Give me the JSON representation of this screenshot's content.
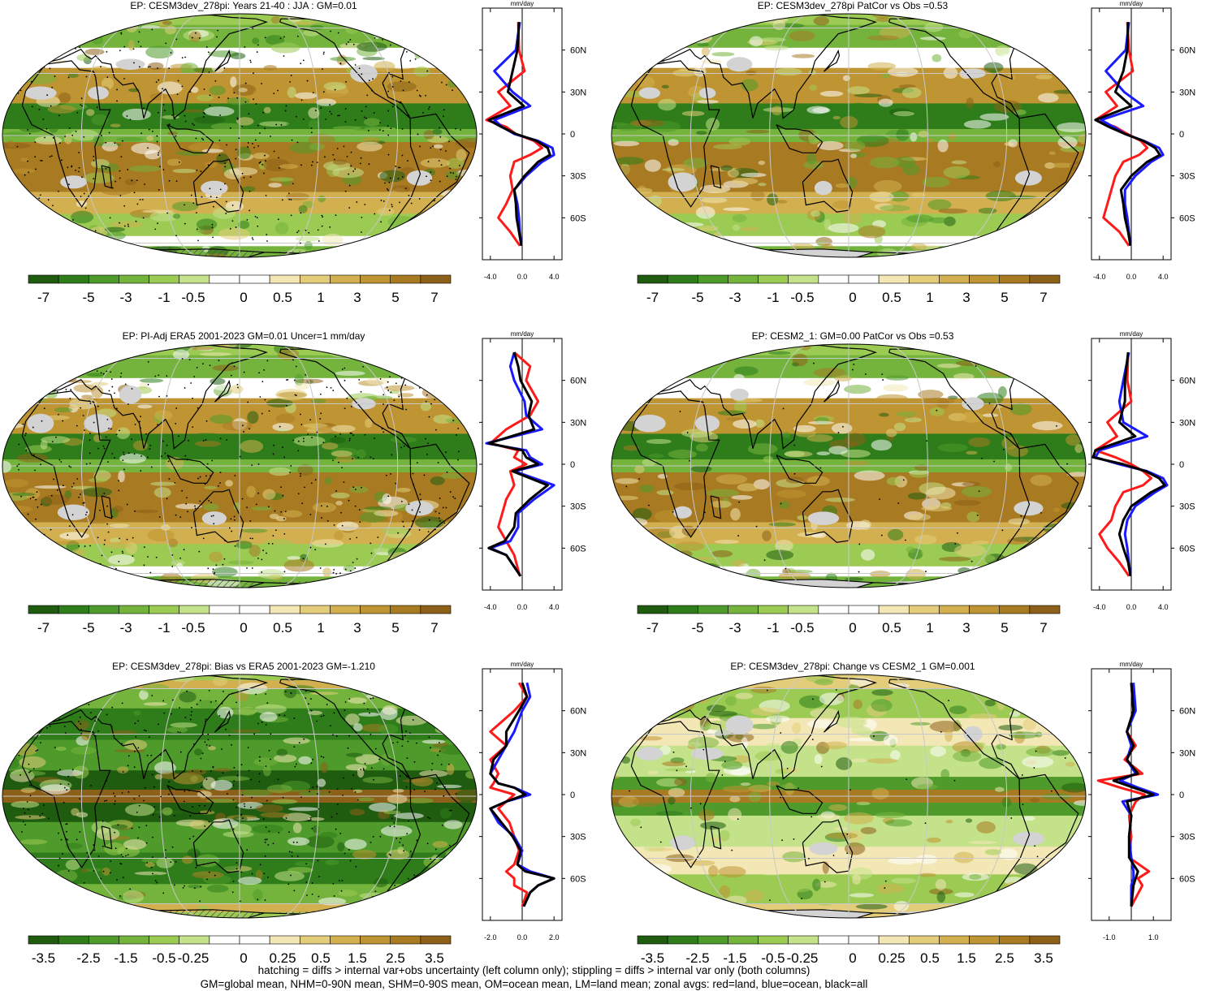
{
  "panels": [
    {
      "title": "EP: CESM3dev_278pi: Years 21-40 : JJA : GM=0.01",
      "zonal_unit": "mm/day",
      "lat_labels": [
        "60N",
        "30N",
        "0",
        "30S",
        "60S"
      ],
      "x_ticks": [
        "-4.0",
        "0.0",
        "4.0"
      ],
      "colorbar": [
        "-7",
        "-5",
        "-3",
        "-1",
        "-0.5",
        "0",
        "0.5",
        "1",
        "3",
        "5",
        "7"
      ],
      "hatching": true,
      "stippling": "heavy",
      "field": "mean"
    },
    {
      "title": "EP: CESM3dev_278pi PatCor vs Obs =0.53",
      "zonal_unit": "mm/day",
      "lat_labels": [
        "60N",
        "30N",
        "0",
        "30S",
        "60S"
      ],
      "x_ticks": [
        "-4.0",
        "0.0",
        "4.0"
      ],
      "colorbar": [
        "-7",
        "-5",
        "-3",
        "-1",
        "-0.5",
        "0",
        "0.5",
        "1",
        "3",
        "5",
        "7"
      ],
      "hatching": false,
      "stippling": "none",
      "field": "mean"
    },
    {
      "title": "EP: PI-Adj ERA5 2001-2023 GM=0.01 Uncer=1 mm/day",
      "zonal_unit": "mm/day",
      "lat_labels": [
        "60N",
        "30N",
        "0",
        "30S",
        "60S"
      ],
      "x_ticks": [
        "-4.0",
        "0.0",
        "4.0"
      ],
      "colorbar": [
        "-7",
        "-5",
        "-3",
        "-1",
        "-0.5",
        "0",
        "0.5",
        "1",
        "3",
        "5",
        "7"
      ],
      "hatching": true,
      "stippling": "heavy",
      "field": "obs"
    },
    {
      "title": "EP: CESM2_1: GM=0.00 PatCor vs Obs =0.53",
      "zonal_unit": "mm/day",
      "lat_labels": [
        "60N",
        "30N",
        "0",
        "30S",
        "60S"
      ],
      "x_ticks": [
        "-4.0",
        "0.0",
        "4.0"
      ],
      "colorbar": [
        "-7",
        "-5",
        "-3",
        "-1",
        "-0.5",
        "0",
        "0.5",
        "1",
        "3",
        "5",
        "7"
      ],
      "hatching": false,
      "stippling": "light",
      "field": "mean"
    },
    {
      "title": "EP: CESM3dev_278pi: Bias vs ERA5 2001-2023 GM=-1.210",
      "zonal_unit": "mm/day",
      "lat_labels": [
        "60N",
        "30N",
        "0",
        "30S",
        "60S"
      ],
      "x_ticks": [
        "-2.0",
        "0.0",
        "2.0"
      ],
      "colorbar": [
        "-3.5",
        "-2.5",
        "-1.5",
        "-0.5",
        "-0.25",
        "0",
        "0.25",
        "0.5",
        "1.5",
        "2.5",
        "3.5"
      ],
      "hatching": true,
      "stippling": "heavy",
      "field": "bias"
    },
    {
      "title": "EP: CESM3dev_278pi: Change vs CESM2_1 GM=0.001",
      "zonal_unit": "mm/day",
      "lat_labels": [
        "60N",
        "30N",
        "0",
        "30S",
        "60S"
      ],
      "x_ticks": [
        "-1.0",
        "1.0"
      ],
      "colorbar": [
        "-3.5",
        "-2.5",
        "-1.5",
        "-0.5",
        "-0.25",
        "0",
        "0.25",
        "0.5",
        "1.5",
        "2.5",
        "3.5"
      ],
      "hatching": false,
      "stippling": "light",
      "field": "change"
    }
  ],
  "palette": [
    "#1f5c10",
    "#2e7d1a",
    "#4e9a2a",
    "#74b33c",
    "#9ccb54",
    "#c4e28a",
    "#ffffff",
    "#ffffff",
    "#f3e8b5",
    "#e3cd7a",
    "#d2b04f",
    "#bf9432",
    "#a87a22",
    "#8c6018"
  ],
  "footer": {
    "line1": "hatching = diffs > internal var+obs uncertainty (left column only); stippling = diffs > internal var only (both columns)",
    "line2": "GM=global mean, NHM=0-90N mean, SHM=0-90S mean, OM=ocean mean, LM=land mean; zonal avgs: red=land, blue=ocean, black=all"
  },
  "chart_data": [
    {
      "type": "heatmap",
      "title": "EP: CESM3dev_278pi: Years 21-40 : JJA : GM=0.01",
      "colorbar_levels": [
        -7,
        -5,
        -3,
        -1,
        -0.5,
        0,
        0.5,
        1,
        3,
        5,
        7
      ],
      "zonal_mean": {
        "type": "line",
        "xlabel": "mm/day",
        "xlim": [
          -5,
          5
        ],
        "ylim": [
          -90,
          90
        ],
        "lat": [
          80,
          60,
          45,
          30,
          20,
          10,
          5,
          0,
          -5,
          -10,
          -15,
          -20,
          -30,
          -40,
          -50,
          -60,
          -70,
          -80
        ],
        "series": [
          {
            "name": "land",
            "values": [
              -0.5,
              -0.4,
              0.3,
              -3.0,
              -1.5,
              -4.5,
              -2.0,
              -0.8,
              1.5,
              2.5,
              1.0,
              -1.0,
              -1.5,
              -1.2,
              -2.0,
              -3.0,
              -1.5,
              -0.3
            ]
          },
          {
            "name": "ocean",
            "values": [
              -0.3,
              -0.8,
              -3.5,
              -1.2,
              1.0,
              -3.5,
              -2.5,
              -1.0,
              2.0,
              3.8,
              4.0,
              2.5,
              0.5,
              -1.0,
              -0.6,
              -0.4,
              -0.3,
              -0.1
            ]
          },
          {
            "name": "all",
            "values": [
              -0.4,
              -0.6,
              -1.2,
              -1.8,
              0.2,
              -4.2,
              -2.6,
              -0.8,
              1.8,
              3.2,
              3.5,
              2.0,
              0.3,
              -1.0,
              -0.8,
              -0.7,
              -0.4,
              -0.1
            ]
          }
        ]
      }
    },
    {
      "type": "heatmap",
      "title": "EP: CESM3dev_278pi PatCor vs Obs =0.53",
      "colorbar_levels": [
        -7,
        -5,
        -3,
        -1,
        -0.5,
        0,
        0.5,
        1,
        3,
        5,
        7
      ],
      "zonal_mean": {
        "type": "line",
        "xlabel": "mm/day",
        "xlim": [
          -5,
          5
        ],
        "ylim": [
          -90,
          90
        ],
        "lat": [
          80,
          60,
          45,
          30,
          20,
          10,
          5,
          0,
          -5,
          -10,
          -15,
          -20,
          -30,
          -40,
          -50,
          -60,
          -70,
          -80
        ],
        "series": [
          {
            "name": "land",
            "values": [
              -0.5,
              -0.3,
              0.2,
              -3.2,
              -1.8,
              -4.5,
              -2.0,
              -0.5,
              1.2,
              2.0,
              1.0,
              -1.0,
              -2.0,
              -2.5,
              -3.0,
              -3.5,
              -1.5,
              -0.3
            ]
          },
          {
            "name": "ocean",
            "values": [
              -0.3,
              -0.7,
              -3.2,
              -0.9,
              1.5,
              -3.8,
              -2.2,
              -0.8,
              1.6,
              3.5,
              4.0,
              2.5,
              0.5,
              -0.8,
              -0.8,
              -0.5,
              -0.3,
              -0.1
            ]
          },
          {
            "name": "all",
            "values": [
              -0.4,
              -0.5,
              -1.0,
              -2.0,
              0.0,
              -4.5,
              -2.8,
              -0.8,
              1.5,
              3.0,
              3.6,
              2.0,
              0.0,
              -1.3,
              -1.0,
              -0.8,
              -0.4,
              -0.1
            ]
          }
        ]
      }
    },
    {
      "type": "heatmap",
      "title": "EP: PI-Adj ERA5 2001-2023 GM=0.01 Uncer=1 mm/day",
      "colorbar_levels": [
        -7,
        -5,
        -3,
        -1,
        -0.5,
        0,
        0.5,
        1,
        3,
        5,
        7
      ],
      "zonal_mean": {
        "type": "line",
        "xlabel": "mm/day",
        "xlim": [
          -5,
          5
        ],
        "ylim": [
          -90,
          90
        ],
        "lat": [
          80,
          70,
          60,
          45,
          35,
          25,
          15,
          10,
          5,
          0,
          -5,
          -15,
          -25,
          -35,
          -45,
          -55,
          -60,
          -65,
          -80
        ],
        "series": [
          {
            "name": "land",
            "values": [
              -1.0,
              1.0,
              0.5,
              2.0,
              1.0,
              -2.0,
              -4.0,
              -0.5,
              -1.0,
              0.5,
              -1.5,
              -1.0,
              -2.0,
              -2.5,
              -3.0,
              -2.0,
              -1.5,
              -1.0,
              -0.3
            ]
          },
          {
            "name": "ocean",
            "values": [
              -1.0,
              -1.5,
              -1.0,
              0.3,
              0.5,
              2.5,
              -4.5,
              0.5,
              1.0,
              2.5,
              -1.0,
              4.0,
              1.5,
              -0.5,
              -0.5,
              -1.5,
              -4.0,
              -2.0,
              -0.2
            ]
          },
          {
            "name": "all",
            "values": [
              -1.0,
              -0.5,
              -0.2,
              1.2,
              0.8,
              1.5,
              -4.2,
              0.0,
              0.5,
              2.0,
              -1.2,
              3.2,
              1.0,
              -0.8,
              -1.0,
              -2.2,
              -4.2,
              -2.0,
              -0.2
            ]
          }
        ]
      }
    },
    {
      "type": "heatmap",
      "title": "EP: CESM2_1: GM=0.00 PatCor vs Obs =0.53",
      "colorbar_levels": [
        -7,
        -5,
        -3,
        -1,
        -0.5,
        0,
        0.5,
        1,
        3,
        5,
        7
      ],
      "zonal_mean": {
        "type": "line",
        "xlabel": "mm/day",
        "xlim": [
          -5,
          5
        ],
        "ylim": [
          -90,
          90
        ],
        "lat": [
          80,
          60,
          45,
          30,
          20,
          10,
          5,
          0,
          -5,
          -10,
          -15,
          -20,
          -30,
          -40,
          -50,
          -60,
          -70,
          -80
        ],
        "series": [
          {
            "name": "land",
            "values": [
              -0.4,
              -0.5,
              0.0,
              -3.0,
              -1.8,
              -4.5,
              -2.0,
              0.0,
              1.5,
              2.5,
              1.5,
              -1.0,
              -2.0,
              -2.5,
              -4.0,
              -3.0,
              -1.5,
              -0.3
            ]
          },
          {
            "name": "ocean",
            "values": [
              -0.3,
              -1.0,
              -1.5,
              -1.0,
              2.0,
              -4.0,
              -4.5,
              -1.5,
              2.0,
              4.0,
              4.5,
              3.0,
              0.5,
              -0.5,
              -0.8,
              -0.5,
              -0.3,
              -0.1
            ]
          },
          {
            "name": "all",
            "values": [
              -0.4,
              -0.8,
              -0.8,
              -1.5,
              0.5,
              -4.5,
              -4.8,
              -1.0,
              1.8,
              3.5,
              4.2,
              2.5,
              0.0,
              -1.0,
              -1.5,
              -1.0,
              -0.4,
              -0.1
            ]
          }
        ]
      }
    },
    {
      "type": "heatmap",
      "title": "EP: CESM3dev_278pi: Bias vs ERA5 2001-2023 GM=-1.210",
      "colorbar_levels": [
        -3.5,
        -2.5,
        -1.5,
        -0.5,
        -0.25,
        0,
        0.25,
        0.5,
        1.5,
        2.5,
        3.5
      ],
      "zonal_mean": {
        "type": "line",
        "xlabel": "mm/day",
        "xlim": [
          -2.5,
          2.5
        ],
        "ylim": [
          -90,
          90
        ],
        "lat": [
          80,
          70,
          60,
          45,
          35,
          25,
          15,
          8,
          5,
          0,
          -5,
          -10,
          -20,
          -30,
          -40,
          -50,
          -55,
          -60,
          -65,
          -70,
          -80
        ],
        "series": [
          {
            "name": "land",
            "values": [
              -0.2,
              0.3,
              -0.5,
              -2.0,
              -1.0,
              -2.0,
              -1.5,
              -1.8,
              -2.0,
              -0.5,
              -1.0,
              -1.5,
              -0.8,
              -0.5,
              -0.2,
              -0.5,
              -1.0,
              -0.5,
              -0.5,
              0.3,
              0.0
            ]
          },
          {
            "name": "ocean",
            "values": [
              0.3,
              0.5,
              0.0,
              -0.5,
              -1.0,
              -1.5,
              -2.0,
              -1.5,
              -0.5,
              0.5,
              -1.0,
              -2.0,
              -1.5,
              -0.5,
              0.0,
              -0.3,
              0.5,
              2.0,
              1.0,
              0.5,
              0.1
            ]
          },
          {
            "name": "all",
            "values": [
              0.0,
              0.3,
              -0.2,
              -1.0,
              -1.0,
              -1.8,
              -2.0,
              -1.5,
              -0.5,
              0.2,
              -1.0,
              -2.0,
              -1.3,
              -0.6,
              -0.1,
              -0.3,
              0.2,
              2.0,
              1.0,
              0.5,
              0.1
            ]
          }
        ]
      }
    },
    {
      "type": "heatmap",
      "title": "EP: CESM3dev_278pi: Change vs CESM2_1 GM=0.001",
      "colorbar_levels": [
        -3.5,
        -2.5,
        -1.5,
        -0.5,
        -0.25,
        0,
        0.25,
        0.5,
        1.5,
        2.5,
        3.5
      ],
      "zonal_mean": {
        "type": "line",
        "xlabel": "mm/day",
        "xlim": [
          -1.8,
          1.8
        ],
        "ylim": [
          -90,
          90
        ],
        "lat": [
          80,
          60,
          45,
          35,
          25,
          15,
          10,
          5,
          0,
          -5,
          -15,
          -30,
          -45,
          -55,
          -60,
          -65,
          -80
        ],
        "series": [
          {
            "name": "land",
            "values": [
              0.0,
              0.1,
              -0.2,
              0.2,
              -0.3,
              0.5,
              -1.5,
              -0.5,
              0.6,
              0.2,
              -0.1,
              0.0,
              -0.1,
              0.8,
              0.3,
              0.5,
              0.0
            ]
          },
          {
            "name": "ocean",
            "values": [
              0.1,
              0.2,
              -0.2,
              0.0,
              -0.2,
              0.2,
              -0.5,
              0.3,
              1.2,
              -0.4,
              0.0,
              -0.1,
              0.0,
              0.1,
              0.1,
              0.0,
              0.0
            ]
          },
          {
            "name": "all",
            "values": [
              0.0,
              0.1,
              -0.2,
              0.1,
              -0.2,
              0.3,
              -0.8,
              0.1,
              1.0,
              -0.2,
              0.0,
              -0.1,
              -0.1,
              0.3,
              0.2,
              0.1,
              0.0
            ]
          }
        ]
      }
    }
  ]
}
